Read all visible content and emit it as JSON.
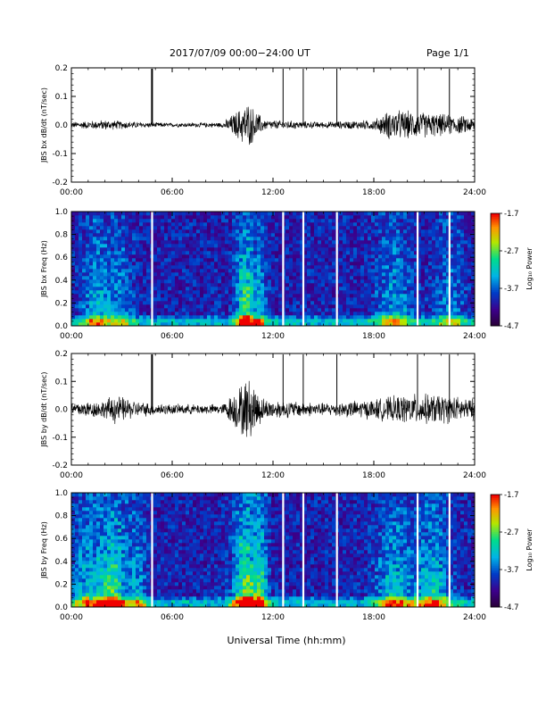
{
  "header": {
    "title": "2017/07/09  00:00−24:00 UT",
    "page": "Page 1/1"
  },
  "xlabel": "Universal Time (hh:mm)",
  "chart_data": [
    {
      "type": "line",
      "ylabel": "JBS bx dB/dt (nT/sec)",
      "x_ticks": [
        "00:00",
        "06:00",
        "12:00",
        "18:00",
        "24:00"
      ],
      "xlim_hours": [
        0,
        24
      ],
      "ylim": [
        -0.2,
        0.2
      ],
      "y_ticks": [
        "-0.2",
        "-0.1",
        "0.0",
        "0.1",
        "0.2"
      ],
      "spikes_hours": [
        4.8,
        12.6,
        13.8,
        15.8,
        20.6,
        22.5
      ],
      "noise_envelope": [
        {
          "hour": 0,
          "amp": 0.012
        },
        {
          "hour": 2,
          "amp": 0.02
        },
        {
          "hour": 4,
          "amp": 0.012
        },
        {
          "hour": 6,
          "amp": 0.008
        },
        {
          "hour": 9,
          "amp": 0.01
        },
        {
          "hour": 10.5,
          "amp": 0.09
        },
        {
          "hour": 11.5,
          "amp": 0.02
        },
        {
          "hour": 15,
          "amp": 0.012
        },
        {
          "hour": 18,
          "amp": 0.02
        },
        {
          "hour": 19,
          "amp": 0.06
        },
        {
          "hour": 21,
          "amp": 0.05
        },
        {
          "hour": 24,
          "amp": 0.03
        }
      ]
    },
    {
      "type": "heatmap",
      "ylabel": "JBS bx Freq (Hz)",
      "x_ticks": [
        "00:00",
        "06:00",
        "12:00",
        "18:00",
        "24:00"
      ],
      "y_ticks": [
        "0.0",
        "0.2",
        "0.4",
        "0.6",
        "0.8",
        "1.0"
      ],
      "ylim": [
        0,
        1.0
      ],
      "colorbar": {
        "label": "Log₁₀ Power",
        "ticks": [
          "-1.7",
          "-2.7",
          "-3.7",
          "-4.7"
        ],
        "range": [
          -4.7,
          -1.7
        ]
      },
      "gaps_hours": [
        4.8,
        12.6,
        13.8,
        15.8,
        20.6,
        22.5
      ],
      "activity": [
        {
          "hour": 1.5,
          "strength": 0.5,
          "width": 1.2
        },
        {
          "hour": 3.0,
          "strength": 0.35,
          "width": 1.0
        },
        {
          "hour": 10.4,
          "strength": 0.9,
          "width": 0.8
        },
        {
          "hour": 11.3,
          "strength": 0.4,
          "width": 0.5
        },
        {
          "hour": 19.2,
          "strength": 0.45,
          "width": 1.5
        },
        {
          "hour": 22.5,
          "strength": 0.35,
          "width": 1.2
        }
      ]
    },
    {
      "type": "line",
      "ylabel": "JBS by dB/dt (nT/sec)",
      "x_ticks": [
        "00:00",
        "06:00",
        "12:00",
        "18:00",
        "24:00"
      ],
      "xlim_hours": [
        0,
        24
      ],
      "ylim": [
        -0.2,
        0.2
      ],
      "y_ticks": [
        "-0.2",
        "-0.1",
        "0.0",
        "0.1",
        "0.2"
      ],
      "spikes_hours": [
        4.8,
        12.6,
        13.8,
        15.8,
        20.6,
        22.5
      ],
      "noise_envelope": [
        {
          "hour": 0,
          "amp": 0.03
        },
        {
          "hour": 2,
          "amp": 0.035
        },
        {
          "hour": 2.5,
          "amp": 0.06
        },
        {
          "hour": 4,
          "amp": 0.03
        },
        {
          "hour": 6,
          "amp": 0.02
        },
        {
          "hour": 9,
          "amp": 0.02
        },
        {
          "hour": 10.5,
          "amp": 0.13
        },
        {
          "hour": 11.5,
          "amp": 0.04
        },
        {
          "hour": 15,
          "amp": 0.025
        },
        {
          "hour": 18,
          "amp": 0.04
        },
        {
          "hour": 20,
          "amp": 0.06
        },
        {
          "hour": 22,
          "amp": 0.06
        },
        {
          "hour": 24,
          "amp": 0.04
        }
      ]
    },
    {
      "type": "heatmap",
      "ylabel": "JBS by Freq (Hz)",
      "x_ticks": [
        "00:00",
        "06:00",
        "12:00",
        "18:00",
        "24:00"
      ],
      "y_ticks": [
        "0.0",
        "0.2",
        "0.4",
        "0.6",
        "0.8",
        "1.0"
      ],
      "ylim": [
        0,
        1.0
      ],
      "colorbar": {
        "label": "Log₁₀ Power",
        "ticks": [
          "-1.7",
          "-2.7",
          "-3.7",
          "-4.7"
        ],
        "range": [
          -4.7,
          -1.7
        ]
      },
      "gaps_hours": [
        4.8,
        12.6,
        13.8,
        15.8,
        20.6,
        22.5
      ],
      "activity": [
        {
          "hour": 1.0,
          "strength": 0.5,
          "width": 1.5
        },
        {
          "hour": 2.5,
          "strength": 0.75,
          "width": 1.2
        },
        {
          "hour": 4.0,
          "strength": 0.4,
          "width": 0.8
        },
        {
          "hour": 10.4,
          "strength": 1.0,
          "width": 1.0
        },
        {
          "hour": 11.3,
          "strength": 0.6,
          "width": 0.6
        },
        {
          "hour": 19.2,
          "strength": 0.55,
          "width": 1.5
        },
        {
          "hour": 21.5,
          "strength": 0.6,
          "width": 1.5
        }
      ]
    }
  ]
}
